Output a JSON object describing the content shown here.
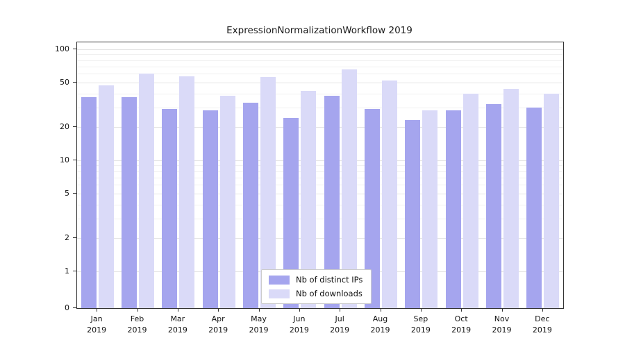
{
  "chart_data": {
    "type": "bar",
    "title": "ExpressionNormalizationWorkflow 2019",
    "categories": [
      "Jan\n2019",
      "Feb\n2019",
      "Mar\n2019",
      "Apr\n2019",
      "May\n2019",
      "Jun\n2019",
      "Jul\n2019",
      "Aug\n2019",
      "Sep\n2019",
      "Oct\n2019",
      "Nov\n2019",
      "Dec\n2019"
    ],
    "series": [
      {
        "name": "Nb of distinct IPs",
        "color": "#a5a5ee",
        "values": [
          37,
          37,
          29,
          28,
          33,
          24,
          38,
          29,
          23,
          28,
          32,
          30
        ]
      },
      {
        "name": "Nb of downloads",
        "color": "#dadaf8",
        "values": [
          47,
          60,
          57,
          38,
          56,
          42,
          66,
          52,
          28,
          40,
          44,
          40
        ]
      }
    ],
    "yscale": "symlog",
    "yticks": [
      0,
      1,
      2,
      5,
      10,
      20,
      50,
      100
    ],
    "ylim": [
      0,
      100
    ],
    "grid": true,
    "legend_position": "lower center"
  }
}
